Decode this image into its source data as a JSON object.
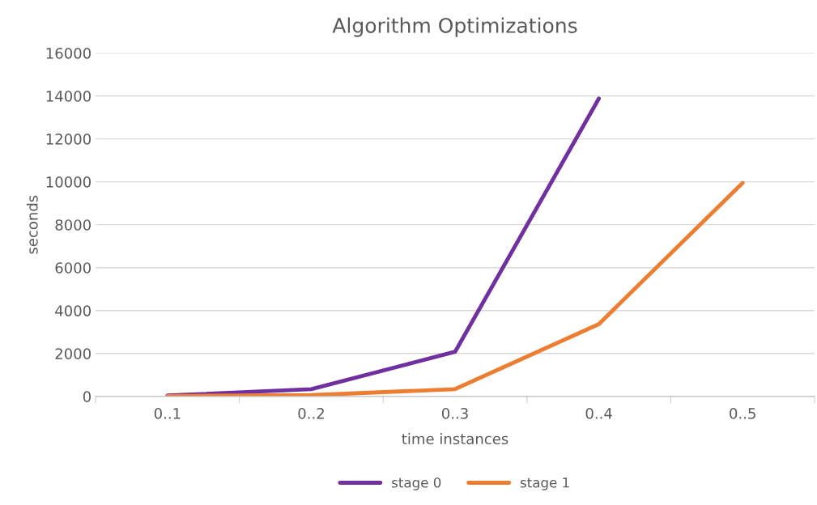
{
  "chart_data": {
    "type": "line",
    "title": "Algorithm Optimizations",
    "xlabel": "time instances",
    "ylabel": "seconds",
    "categories": [
      "0..1",
      "0..2",
      "0..3",
      "0..4",
      "0..5"
    ],
    "series": [
      {
        "name": "stage 0",
        "color": "#7030a0",
        "values": [
          40,
          340,
          2080,
          13880,
          null
        ]
      },
      {
        "name": "stage 1",
        "color": "#ed7d31",
        "values": [
          20,
          60,
          340,
          3370,
          9950
        ]
      }
    ],
    "ylim": [
      0,
      16000
    ],
    "yticks": [
      0,
      2000,
      4000,
      6000,
      8000,
      10000,
      12000,
      14000,
      16000
    ],
    "grid": "y",
    "legend": "bottom",
    "marker": "none",
    "line_style": "solid"
  }
}
